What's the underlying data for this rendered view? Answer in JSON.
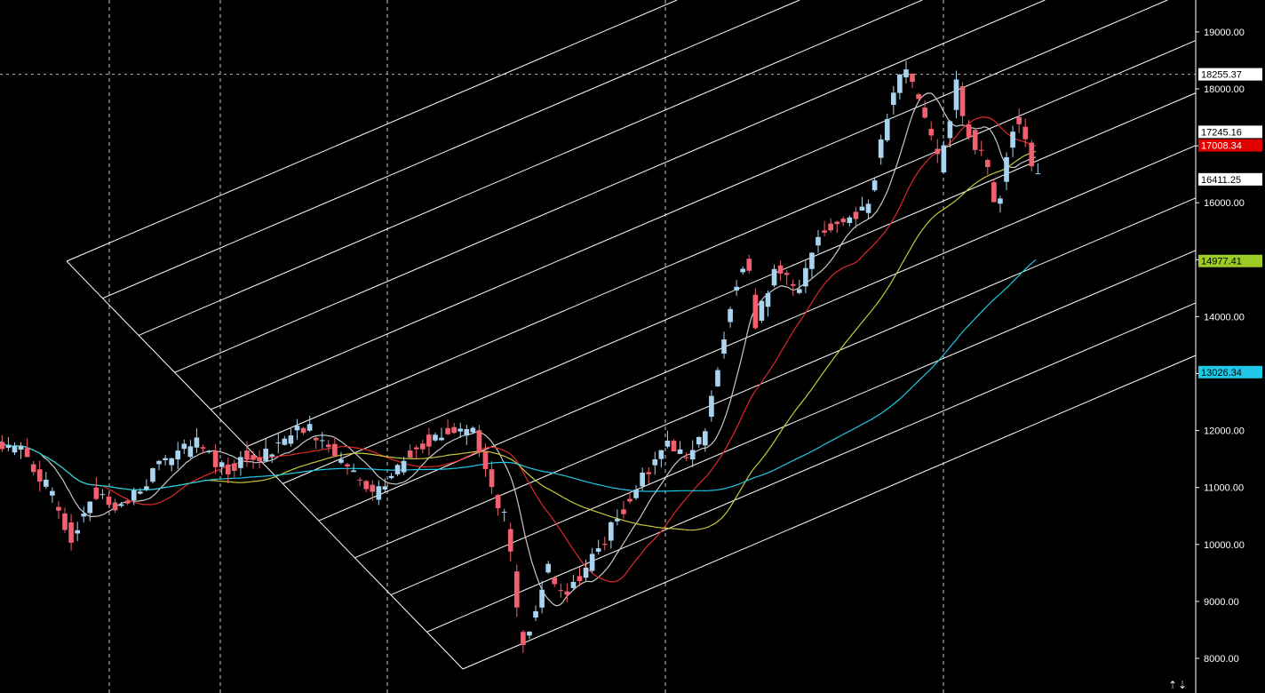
{
  "chart_data": {
    "type": "candlestick",
    "y_axis": {
      "position": "right",
      "ticks": [
        8000,
        9000,
        10000,
        11000,
        12000,
        13000,
        14000,
        15000,
        16000,
        17000,
        18000,
        19000
      ],
      "tick_labels": [
        "8000.00",
        "9000.00",
        "10000.00",
        "11000.00",
        "12000.00",
        "13000.00",
        "14000.00",
        "15000.00",
        "16000.00",
        "17000.00",
        "18000.00",
        "19000.00"
      ],
      "ylim": [
        7600,
        19900
      ]
    },
    "grid": {
      "vertical_dashed": true,
      "horizontal_crosshair_value": 18255.37
    },
    "candles": {
      "count": 290,
      "anchors": [
        [
          0,
          11800
        ],
        [
          12,
          11650
        ],
        [
          25,
          10900
        ],
        [
          35,
          10100
        ],
        [
          45,
          10900
        ],
        [
          60,
          10650
        ],
        [
          80,
          11500
        ],
        [
          95,
          11750
        ],
        [
          110,
          11300
        ],
        [
          118,
          11600
        ],
        [
          125,
          11500
        ],
        [
          135,
          11850
        ],
        [
          148,
          12050
        ],
        [
          158,
          11700
        ],
        [
          170,
          11200
        ],
        [
          180,
          10800
        ],
        [
          188,
          11200
        ],
        [
          200,
          11750
        ],
        [
          210,
          11900
        ],
        [
          218,
          12000
        ],
        [
          228,
          12050
        ],
        [
          232,
          11400
        ],
        [
          244,
          10300
        ],
        [
          250,
          8100
        ],
        [
          256,
          8700
        ],
        [
          262,
          9600
        ],
        [
          270,
          9100
        ],
        [
          278,
          9400
        ],
        [
          290,
          10100
        ]
      ],
      "colors": {
        "up": "#a8d4f0",
        "down": "#f0606e"
      },
      "note_seed": 7
    },
    "ma_series": [
      {
        "color": "#c8c8c8",
        "window": 20
      },
      {
        "color": "#e02828",
        "window": 50
      },
      {
        "color": "#c8c83c",
        "window": 100
      },
      {
        "color": "#1ec8e6",
        "window": 200
      }
    ],
    "price_badges": [
      {
        "value": 18255.37,
        "label": "18255.37",
        "bg": "#ffffff",
        "fg": "#000000"
      },
      {
        "value": 17245.16,
        "label": "17245.16",
        "bg": "#ffffff",
        "fg": "#000000"
      },
      {
        "value": 17008.34,
        "label": "17008.34",
        "bg": "#e00000",
        "fg": "#ffffff"
      },
      {
        "value": 16411.25,
        "label": "16411.25",
        "bg": "#ffffff",
        "fg": "#000000"
      },
      {
        "value": 14977.41,
        "label": "14977.41",
        "bg": "#9ccc28",
        "fg": "#000000"
      },
      {
        "value": 13026.34,
        "label": "13026.34",
        "bg": "#1ec8e6",
        "fg": "#000000"
      }
    ],
    "channel_lines_color": "#ffffff"
  },
  "ui": {
    "scroll_arrows": "⇡⇣"
  }
}
